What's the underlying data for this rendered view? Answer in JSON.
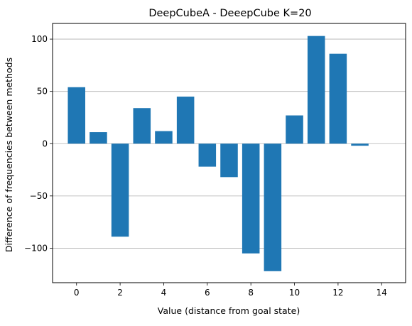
{
  "chart_data": {
    "type": "bar",
    "title": "DeepCubeA - DeeepCube K=20",
    "xlabel": "Value (distance from goal state)",
    "ylabel": "Difference of frequencies between methods",
    "x": [
      0,
      1,
      2,
      3,
      4,
      5,
      6,
      7,
      8,
      9,
      10,
      11,
      12,
      13
    ],
    "values": [
      54,
      11,
      -89,
      34,
      12,
      45,
      -22,
      -32,
      -105,
      -122,
      27,
      103,
      86,
      -2
    ],
    "xlim": [
      -1.1,
      15.1
    ],
    "ylim": [
      -133,
      115
    ],
    "xticks": [
      0,
      2,
      4,
      6,
      8,
      10,
      12,
      14
    ],
    "yticks": [
      -100,
      -50,
      0,
      50,
      100
    ],
    "grid": "y",
    "bar_color": "#1f77b4",
    "grid_color": "#b0b0b0"
  }
}
